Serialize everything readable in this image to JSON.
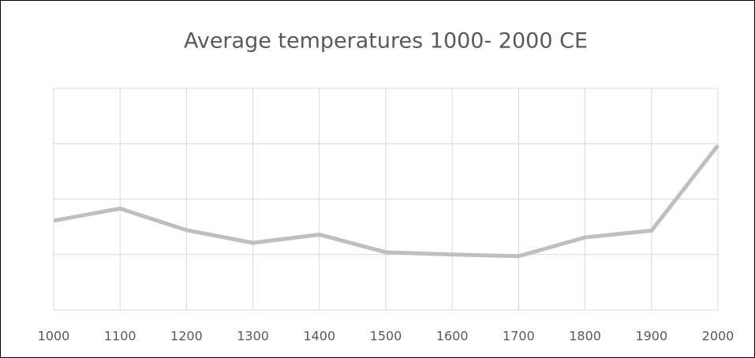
{
  "chart_data": {
    "type": "line",
    "title": "Average temperatures 1000- 2000 CE",
    "x": [
      1000,
      1100,
      1200,
      1300,
      1400,
      1500,
      1600,
      1700,
      1800,
      1900,
      2000
    ],
    "series": [
      {
        "color": "#bfbfbf",
        "values": [
          1.61,
          1.83,
          1.44,
          1.21,
          1.36,
          1.04,
          1.0,
          0.97,
          1.31,
          1.43,
          2.97
        ]
      }
    ],
    "xlim": [
      1000,
      2000
    ],
    "xticks": [
      1000,
      1100,
      1200,
      1300,
      1400,
      1500,
      1600,
      1700,
      1800,
      1900,
      2000
    ],
    "ylim": [
      0,
      4
    ],
    "yticks": [
      0,
      1,
      2,
      3,
      4
    ],
    "grid": true
  }
}
